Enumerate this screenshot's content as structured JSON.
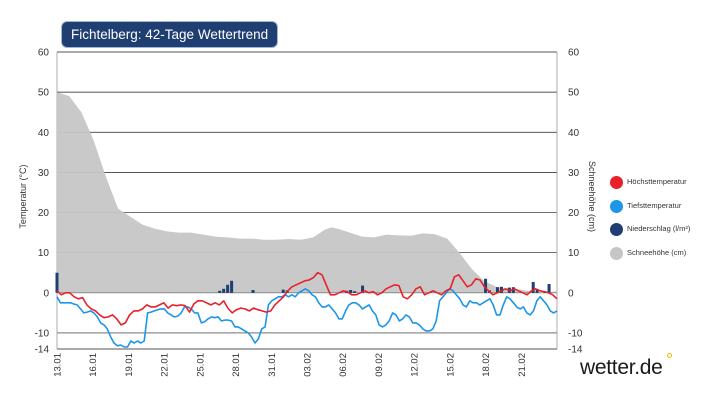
{
  "title": "Fichtelberg: 42-Tage Wettertrend",
  "brand": "wetter.de",
  "chart_data": {
    "type": "line",
    "x_tick_labels": [
      "13.01",
      "16.01",
      "19.01",
      "22.01",
      "25.01",
      "28.01",
      "31.01",
      "03.02",
      "06.02",
      "09.02",
      "12.02",
      "15.02",
      "18.02",
      "21.02"
    ],
    "days": 42,
    "y_left": {
      "label": "Temperatur (°C)",
      "ticks": [
        "60",
        "50",
        "40",
        "30",
        "20",
        "10",
        "0",
        "-10",
        "-14"
      ],
      "range": [
        -14,
        60
      ]
    },
    "y_right": {
      "label": "Schneehöhe (cm)",
      "ticks": [
        "60",
        "50",
        "40",
        "30",
        "20",
        "10",
        "0",
        "-10",
        "-14"
      ],
      "range": [
        -14,
        60
      ]
    },
    "series": [
      {
        "name": "Höchsttemperatur",
        "color": "#e8202a",
        "values": [
          0.5,
          -0.5,
          0,
          0,
          -1,
          -1.5,
          -1.2,
          -3,
          -4,
          -4.5,
          -5.5,
          -6.2,
          -6,
          -5.5,
          -6.5,
          -8,
          -7.5,
          -5.5,
          -4.5,
          -4.5,
          -4,
          -3,
          -3.5,
          -3.5,
          -3,
          -2.5,
          -3.8,
          -3,
          -3.2,
          -3,
          -3.2,
          -4.8,
          -2.8,
          -2,
          -2,
          -2.5,
          -3,
          -2.5,
          -3,
          -2,
          -3.8,
          -5,
          -4.2,
          -3.8,
          -4,
          -4.5,
          -3.8,
          -4.2,
          -4.5,
          -4.8,
          -4.5,
          -3,
          -2,
          -1,
          0.5,
          1.5,
          2,
          2.5,
          3,
          3.2,
          3.8,
          5,
          4.5,
          2,
          -0.5,
          -0.5,
          0,
          0.5,
          0.2,
          -0.5,
          -0.5,
          0,
          0.5,
          0,
          0.3,
          -0.5,
          0,
          1,
          1.5,
          2,
          1.8,
          -1,
          -1.5,
          -0.5,
          1,
          1.5,
          -0.5,
          0,
          0.5,
          0,
          -0.5,
          0.5,
          1,
          4,
          4.5,
          3,
          1.5,
          2,
          3.5,
          3.2,
          1.5,
          0.5,
          -0.5,
          0,
          0.5,
          1,
          0.5,
          1,
          0.5,
          0,
          -0.5,
          0.5,
          1,
          0.5,
          0.3,
          0,
          -0.5,
          -1.5
        ]
      },
      {
        "name": "Tiefsttemperatur",
        "color": "#1c96e8",
        "values": [
          -1,
          -2.5,
          -2.5,
          -2.5,
          -2.5,
          -2.8,
          -3,
          -4,
          -5,
          -4.8,
          -4.5,
          -5,
          -6,
          -7.5,
          -8,
          -9,
          -11,
          -12.5,
          -13.2,
          -13,
          -13.5,
          -13.5,
          -12,
          -12.5,
          -12,
          -12.5,
          -12,
          -5,
          -4.8,
          -4.5,
          -4.2,
          -4,
          -4,
          -5,
          -5.5,
          -6,
          -5.8,
          -5,
          -3.5,
          -3.5,
          -4,
          -5,
          -5,
          -7.5,
          -7.2,
          -6.5,
          -6,
          -6.2,
          -6,
          -7,
          -6.8,
          -6.8,
          -7,
          -8.5,
          -8.5,
          -9,
          -9.5,
          -10,
          -11,
          -12.5,
          -11.5,
          -9,
          -8.5,
          -3,
          -2,
          -1.5,
          -1,
          -1,
          -0.5,
          -1,
          -0.5,
          -1,
          0,
          0.5,
          1,
          0.5,
          -0.5,
          -1,
          -2.5,
          -3.5,
          -3.5,
          -3,
          -4,
          -5,
          -6.5,
          -6.5,
          -4.5,
          -3,
          -2.5,
          -2.5,
          -3,
          -4,
          -3.5,
          -3,
          -4.5,
          -5.5,
          -8,
          -8.5,
          -8,
          -7,
          -5,
          -5.5,
          -7,
          -6.5,
          -5.5,
          -6,
          -7.5,
          -7.5,
          -8,
          -9,
          -9.5,
          -9.5,
          -9,
          -7,
          -2,
          -1,
          0,
          1,
          0.5,
          -0.5,
          -1.5,
          -3,
          -3.5,
          -2,
          -2.5,
          -2.5,
          -3,
          -2.5,
          -2,
          -1.5,
          -3,
          -5.5,
          -5.5,
          -3,
          -1,
          -1.5,
          -2.5,
          -3.5,
          -4,
          -3.5,
          -5,
          -5.5,
          -4.5,
          -2,
          -1,
          -2,
          -3,
          -4.5,
          -5,
          -4.5
        ]
      },
      {
        "name": "Niederschlag (l/m²)",
        "color": "#1f3f73",
        "type": "bar",
        "bars": [
          {
            "x": 0,
            "v": 5
          },
          {
            "x": 20.5,
            "v": 0.5
          },
          {
            "x": 21,
            "v": 1
          },
          {
            "x": 21.5,
            "v": 2
          },
          {
            "x": 22,
            "v": 3
          },
          {
            "x": 24.7,
            "v": 0.7
          },
          {
            "x": 28.5,
            "v": 0.8
          },
          {
            "x": 29,
            "v": 0.6
          },
          {
            "x": 36.5,
            "v": 0.5
          },
          {
            "x": 37,
            "v": 0.7
          },
          {
            "x": 37.5,
            "v": 0.4
          },
          {
            "x": 38.5,
            "v": 1.8
          },
          {
            "x": 54,
            "v": 3.5
          },
          {
            "x": 54.5,
            "v": 0.6
          },
          {
            "x": 55.5,
            "v": 1.4
          },
          {
            "x": 56,
            "v": 1.5
          },
          {
            "x": 57,
            "v": 1.3
          },
          {
            "x": 57.5,
            "v": 1.4
          },
          {
            "x": 60,
            "v": 2.7
          },
          {
            "x": 60.5,
            "v": 0.9
          },
          {
            "x": 62,
            "v": 2.2
          }
        ]
      },
      {
        "name": "Schneehöhe (cm)",
        "color": "#c6c6c6",
        "type": "area",
        "values": [
          [
            0,
            50
          ],
          [
            1,
            49
          ],
          [
            2,
            45
          ],
          [
            3,
            38
          ],
          [
            4,
            29
          ],
          [
            5,
            21
          ],
          [
            6,
            19
          ],
          [
            7,
            17
          ],
          [
            8,
            16
          ],
          [
            9,
            15.3
          ],
          [
            10,
            15
          ],
          [
            11,
            15
          ],
          [
            12,
            14.5
          ],
          [
            13,
            14
          ],
          [
            14,
            13.8
          ],
          [
            15,
            13.5
          ],
          [
            16,
            13.5
          ],
          [
            17,
            13.2
          ],
          [
            18,
            13.2
          ],
          [
            19,
            13.4
          ],
          [
            20,
            13.2
          ],
          [
            21,
            13.8
          ],
          [
            22,
            15.8
          ],
          [
            22.5,
            16.3
          ],
          [
            23,
            16
          ],
          [
            24,
            15
          ],
          [
            25,
            14
          ],
          [
            26,
            13.8
          ],
          [
            27,
            14.5
          ],
          [
            28,
            14.3
          ],
          [
            29,
            14.2
          ],
          [
            30,
            14.8
          ],
          [
            31,
            14.6
          ],
          [
            32,
            13.5
          ],
          [
            33,
            10
          ],
          [
            34,
            6
          ],
          [
            35,
            3
          ],
          [
            36,
            1.5
          ],
          [
            37,
            1
          ],
          [
            38,
            0.8
          ],
          [
            39,
            0.3
          ],
          [
            40,
            0
          ],
          [
            41,
            0.4
          ]
        ]
      }
    ]
  }
}
